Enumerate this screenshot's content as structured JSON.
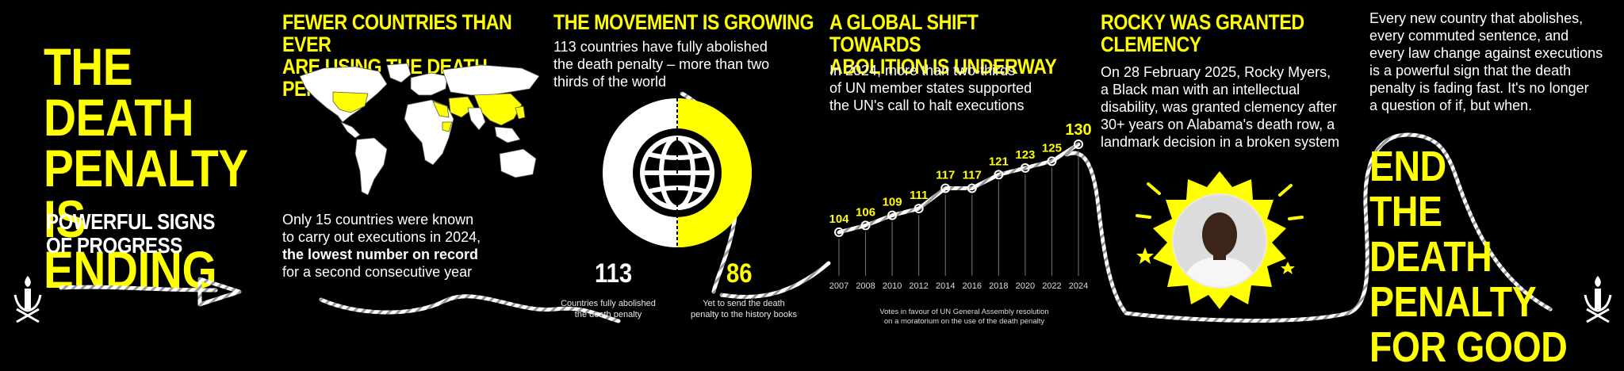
{
  "panel1": {
    "title_lines": [
      "THE DEATH",
      "PENALTY",
      "IS ENDING"
    ],
    "subtitle_lines": [
      "POWERFUL SIGNS",
      "OF PROGRESS"
    ]
  },
  "panel2": {
    "title_lines": [
      "FEWER COUNTRIES THAN EVER",
      "ARE USING THE DEATH PENALTY"
    ],
    "body_line1": "Only 15 countries were known",
    "body_line2": "to carry out executions in 2024,",
    "body_bold": "the lowest number on record",
    "body_line4": "for a second consecutive year"
  },
  "panel3": {
    "title": "THE MOVEMENT IS GROWING",
    "body_lines": [
      "113 countries have fully abolished",
      "the death penalty – more than two",
      "thirds of the world"
    ],
    "stat1_value": "113",
    "stat1_caption_lines": [
      "Countries fully abolished",
      "the death penalty"
    ],
    "stat2_value": "86",
    "stat2_caption_lines": [
      "Yet to send the death",
      "penalty to the history books"
    ]
  },
  "panel4": {
    "title_lines": [
      "A GLOBAL SHIFT TOWARDS",
      "ABOLITION IS UNDERWAY"
    ],
    "body_lines": [
      "In 2024, more than two-thirds",
      "of UN member states supported",
      "the UN's call to halt executions"
    ],
    "caption_lines": [
      "Votes in favour of UN General Assembly resolution",
      "on a moratorium on the use of the death penalty"
    ]
  },
  "chart_data": {
    "type": "line",
    "title": "",
    "x": [
      "2007",
      "2008",
      "2010",
      "2012",
      "2014",
      "2016",
      "2018",
      "2020",
      "2022",
      "2024"
    ],
    "values": [
      104,
      106,
      109,
      111,
      117,
      117,
      121,
      123,
      125,
      130
    ],
    "value_labels": [
      "104",
      "106",
      "109",
      "111",
      "117",
      "117",
      "121",
      "123",
      "125",
      "130"
    ],
    "xlabel": "Votes in favour of UN General Assembly resolution on a moratorium on the use of the death penalty",
    "ylabel": "",
    "grid": "vertical lines"
  },
  "panel5": {
    "title_lines": [
      "ROCKY WAS GRANTED",
      "CLEMENCY"
    ],
    "body_lines": [
      "On 28 February 2025, Rocky Myers,",
      "a Black man with an intellectual",
      "disability, was granted clemency after",
      "30+ years on Alabama's death row, a",
      "landmark decision in a broken system"
    ]
  },
  "panel6": {
    "body_lines": [
      "Every new country that abolishes,",
      "every commuted sentence, and",
      "every law change against executions",
      "is a powerful sign that the death",
      "penalty is fading fast. It's no longer",
      "a question of if, but when."
    ],
    "title_lines": [
      "END",
      "THE DEATH",
      "PENALTY",
      "FOR GOOD"
    ]
  },
  "colors": {
    "accent": "#ffff00",
    "background": "#000000",
    "text": "#ffffff"
  },
  "icons": [
    "candle-logo-icon",
    "arrow-icon",
    "globe-icon",
    "world-map",
    "portrait-photo"
  ]
}
